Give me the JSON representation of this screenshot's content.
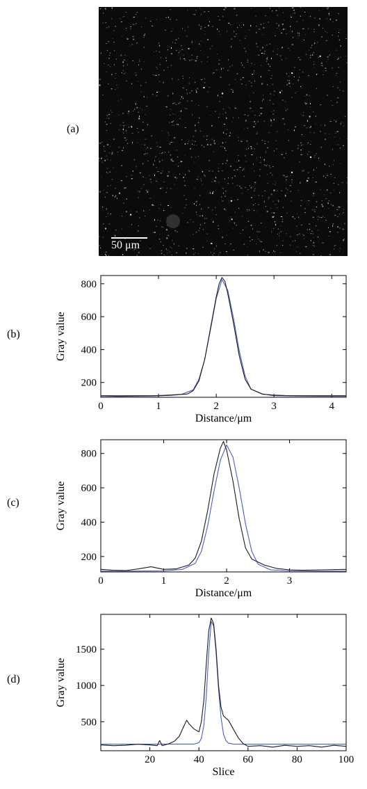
{
  "panel_labels": {
    "a": "(a)",
    "b": "(b)",
    "c": "(c)",
    "d": "(d)"
  },
  "micrograph": {
    "scale_bar_label": "50 μm",
    "background": "#0b0b0b",
    "speckle_color": "#ffffff"
  },
  "colors": {
    "measured": "#1a1a1a",
    "fit": "#4a5bd0"
  },
  "chart_data": [
    {
      "id": "b",
      "type": "line",
      "xlabel": "Distance/μm",
      "ylabel": "Gray value",
      "xlim": [
        0,
        4.25
      ],
      "ylim": [
        110,
        850
      ],
      "xticks": [
        0,
        1,
        2,
        3,
        4
      ],
      "yticks": [
        200,
        400,
        600,
        800
      ],
      "grid": false,
      "series": [
        {
          "role": "measured",
          "x": [
            0,
            0.3,
            0.6,
            0.9,
            1.2,
            1.5,
            1.6,
            1.7,
            1.8,
            1.9,
            2.0,
            2.05,
            2.1,
            2.15,
            2.2,
            2.3,
            2.4,
            2.5,
            2.6,
            2.8,
            3.0,
            3.4,
            3.8,
            4.25
          ],
          "y": [
            118,
            116,
            117,
            118,
            122,
            130,
            150,
            210,
            340,
            530,
            720,
            800,
            838,
            815,
            740,
            560,
            360,
            220,
            160,
            130,
            120,
            118,
            117,
            117
          ]
        },
        {
          "role": "fit",
          "x": [
            0,
            0.5,
            1.0,
            1.4,
            1.6,
            1.7,
            1.8,
            1.9,
            2.0,
            2.1,
            2.2,
            2.3,
            2.4,
            2.5,
            2.6,
            2.8,
            3.2,
            3.6,
            4.25
          ],
          "y": [
            120,
            120,
            121,
            128,
            155,
            220,
            340,
            520,
            710,
            825,
            760,
            590,
            390,
            240,
            160,
            128,
            121,
            120,
            120
          ]
        }
      ]
    },
    {
      "id": "c",
      "type": "line",
      "xlabel": "Distance/μm",
      "ylabel": "Gray value",
      "xlim": [
        0,
        3.9
      ],
      "ylim": [
        110,
        880
      ],
      "xticks": [
        0,
        1,
        2,
        3
      ],
      "yticks": [
        200,
        400,
        600,
        800
      ],
      "grid": false,
      "series": [
        {
          "role": "measured",
          "x": [
            0,
            0.2,
            0.4,
            0.6,
            0.8,
            1.0,
            1.2,
            1.4,
            1.5,
            1.6,
            1.7,
            1.8,
            1.9,
            1.95,
            2.0,
            2.1,
            2.2,
            2.3,
            2.4,
            2.6,
            2.8,
            3.0,
            3.2,
            3.5,
            3.9
          ],
          "y": [
            125,
            120,
            118,
            128,
            140,
            125,
            128,
            150,
            190,
            290,
            470,
            680,
            830,
            870,
            820,
            640,
            420,
            250,
            185,
            150,
            130,
            122,
            120,
            122,
            125
          ]
        },
        {
          "role": "fit",
          "x": [
            0,
            0.5,
            1.0,
            1.3,
            1.5,
            1.6,
            1.7,
            1.8,
            1.9,
            2.0,
            2.1,
            2.2,
            2.3,
            2.4,
            2.5,
            2.7,
            3.0,
            3.5,
            3.9
          ],
          "y": [
            115,
            115,
            116,
            125,
            160,
            230,
            380,
            580,
            760,
            850,
            780,
            600,
            390,
            230,
            155,
            122,
            116,
            115,
            115
          ]
        }
      ]
    },
    {
      "id": "d",
      "type": "line",
      "xlabel": "Slice",
      "ylabel": "Gray value",
      "xlim": [
        0,
        100
      ],
      "ylim": [
        100,
        1980
      ],
      "xticks": [
        20,
        40,
        60,
        80,
        100
      ],
      "yticks": [
        500,
        1000,
        1500
      ],
      "grid": false,
      "series": [
        {
          "role": "measured",
          "x": [
            0,
            5,
            10,
            15,
            20,
            23,
            24,
            25,
            28,
            30,
            32,
            34,
            35,
            36,
            38,
            40,
            41,
            42,
            43,
            44,
            45,
            46,
            47,
            48,
            49,
            50,
            52,
            54,
            56,
            58,
            60,
            65,
            70,
            75,
            80,
            85,
            90,
            95,
            100
          ],
          "y": [
            180,
            170,
            175,
            190,
            180,
            170,
            240,
            170,
            200,
            230,
            300,
            450,
            520,
            470,
            400,
            360,
            500,
            800,
            1300,
            1750,
            1930,
            1850,
            1500,
            1000,
            700,
            580,
            520,
            400,
            280,
            200,
            160,
            170,
            150,
            175,
            160,
            170,
            150,
            175,
            160
          ]
        },
        {
          "role": "fit",
          "x": [
            0,
            20,
            38,
            40,
            41,
            42,
            43,
            44,
            45,
            46,
            47,
            48,
            49,
            50,
            51,
            52,
            54,
            60,
            100
          ],
          "y": [
            190,
            190,
            192,
            210,
            270,
            450,
            850,
            1450,
            1880,
            1820,
            1450,
            950,
            560,
            330,
            240,
            205,
            192,
            190,
            190
          ]
        }
      ]
    }
  ]
}
